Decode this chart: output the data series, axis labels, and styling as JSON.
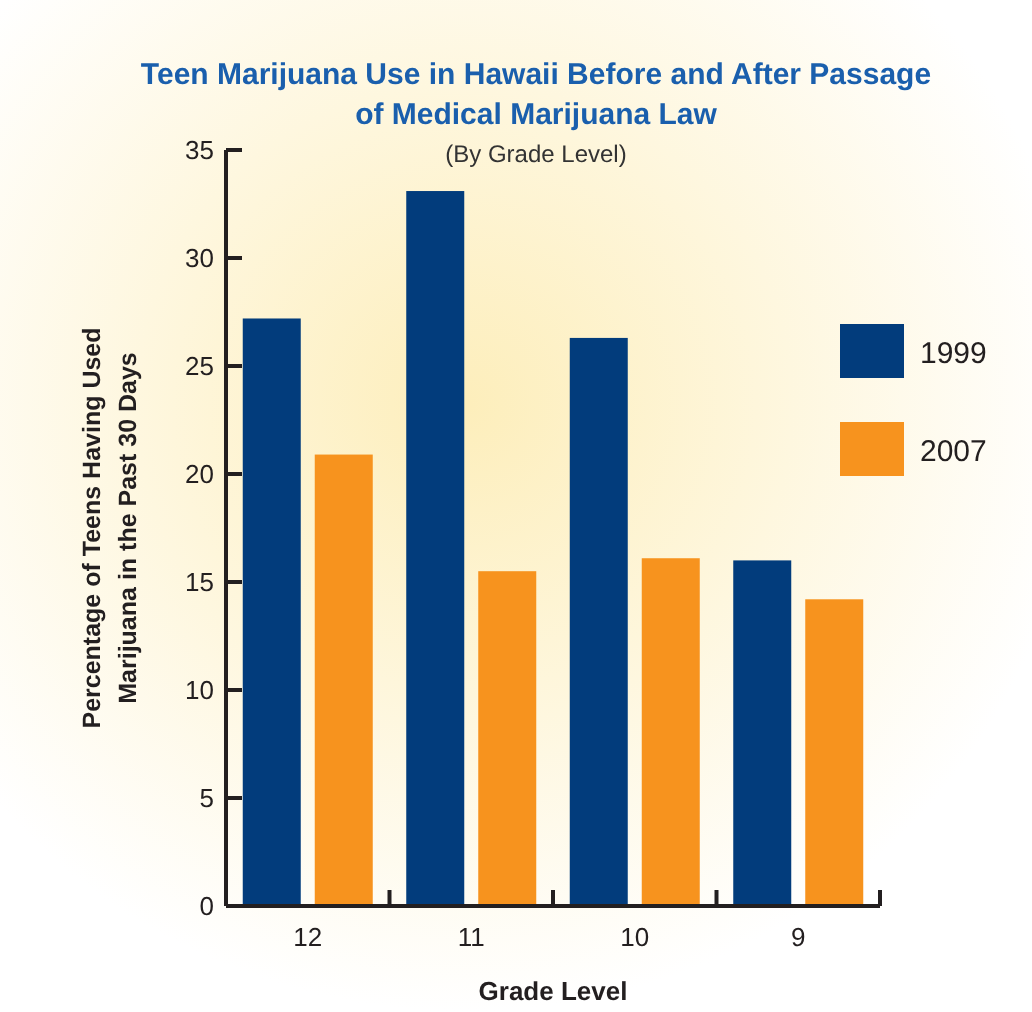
{
  "chart_data": {
    "type": "bar",
    "title": "Teen Marijuana Use in Hawaii Before and After Passage\nof Medical Marijuana Law",
    "subtitle": "(By Grade Level)",
    "xlabel": "Grade Level",
    "ylabel": "Percentage of Teens Having Used\nMarijuana in the Past 30 Days",
    "categories": [
      "12",
      "11",
      "10",
      "9"
    ],
    "series": [
      {
        "name": "1999",
        "color": "#023c7c",
        "values": [
          27.2,
          33.1,
          26.3,
          16.0
        ]
      },
      {
        "name": "2007",
        "color": "#f7931e",
        "values": [
          20.9,
          15.5,
          16.1,
          14.2
        ]
      }
    ],
    "ylim": [
      0,
      35
    ],
    "yticks": [
      0,
      5,
      10,
      15,
      20,
      25,
      30,
      35
    ],
    "legend": "right",
    "grid": false
  }
}
